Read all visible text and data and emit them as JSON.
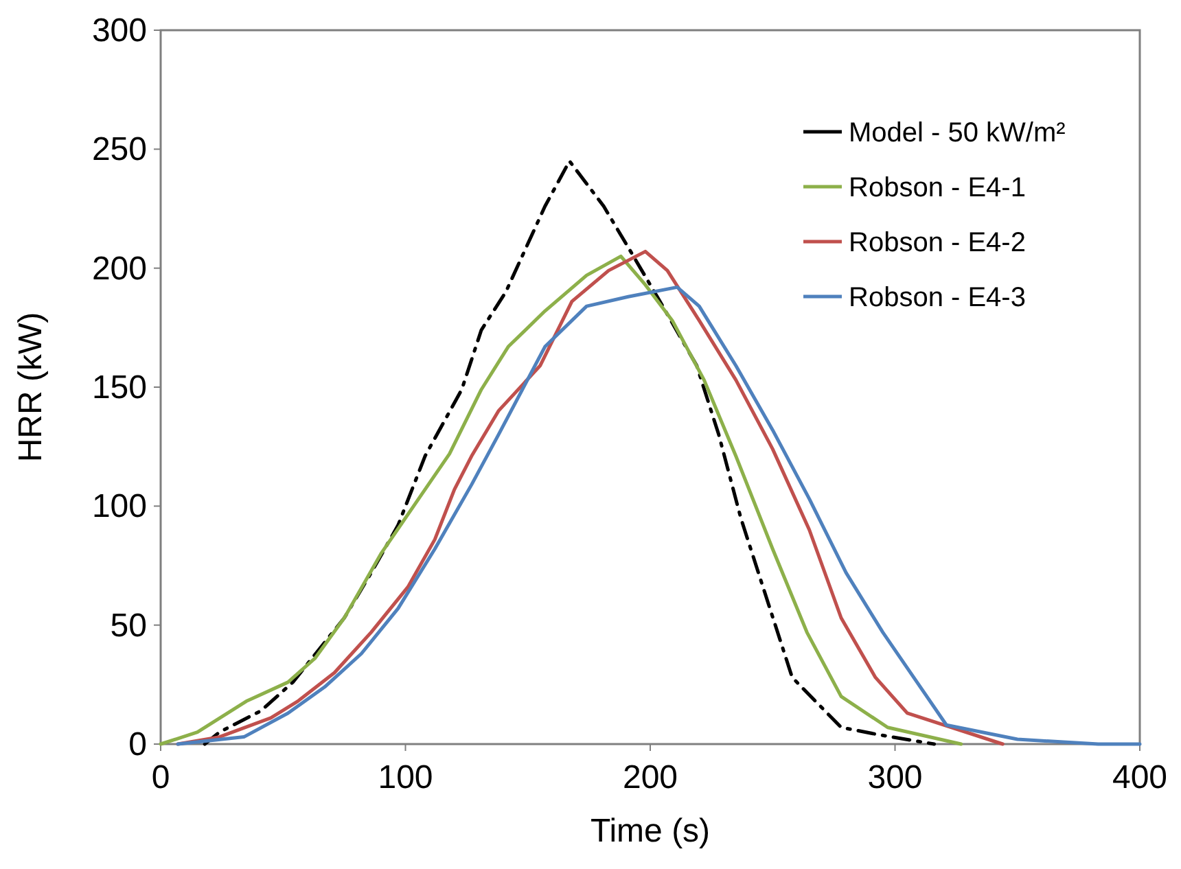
{
  "chart_data": {
    "type": "line",
    "xlabel": "Time (s)",
    "ylabel": "HRR (kW)",
    "xlim": [
      0,
      400
    ],
    "ylim": [
      0,
      300
    ],
    "xticks": [
      0,
      100,
      200,
      300,
      400
    ],
    "yticks": [
      0,
      50,
      100,
      150,
      200,
      250,
      300
    ],
    "grid": false,
    "legend": "top right",
    "marker": "none",
    "series": [
      {
        "name": "Model - 50 kW/m²",
        "color": "#000000",
        "line_style": "dashdot",
        "x": [
          18,
          24,
          41,
          54,
          75,
          86,
          97,
          108,
          123,
          131,
          141,
          157,
          167,
          181,
          192,
          204,
          219,
          228,
          237,
          247,
          258,
          278,
          293,
          316
        ],
        "values": [
          0,
          5,
          14,
          26,
          53,
          72,
          92,
          121,
          149,
          174,
          190,
          226,
          245,
          226,
          207,
          186,
          159,
          130,
          95,
          63,
          28,
          7,
          4,
          0
        ]
      },
      {
        "name": "Robson - E4-1",
        "color": "#8db04a",
        "line_style": "solid",
        "x": [
          0,
          15,
          35,
          52,
          63,
          75,
          90,
          104,
          118,
          131,
          142,
          157,
          174,
          188,
          198,
          209,
          222,
          235,
          250,
          264,
          278,
          297,
          327
        ],
        "values": [
          0,
          5,
          18,
          26,
          36,
          53,
          80,
          101,
          122,
          149,
          167,
          182,
          197,
          205,
          193,
          178,
          153,
          121,
          82,
          47,
          20,
          7,
          0
        ]
      },
      {
        "name": "Robson - E4-2",
        "color": "#c0504d",
        "line_style": "solid",
        "x": [
          7,
          24,
          45,
          56,
          71,
          86,
          101,
          112,
          120,
          127,
          138,
          155,
          168,
          183,
          198,
          207,
          220,
          235,
          250,
          265,
          278,
          292,
          305,
          344
        ],
        "values": [
          0,
          3,
          11,
          18,
          30,
          47,
          66,
          86,
          107,
          121,
          140,
          159,
          186,
          199,
          207,
          199,
          178,
          153,
          124,
          90,
          53,
          28,
          13,
          0
        ]
      },
      {
        "name": "Robson - E4-3",
        "color": "#4f81bd",
        "line_style": "solid",
        "x": [
          7,
          34,
          52,
          67,
          82,
          97,
          112,
          127,
          138,
          157,
          174,
          191,
          211,
          220,
          235,
          250,
          265,
          280,
          295,
          305,
          321,
          350,
          383,
          400
        ],
        "values": [
          0,
          3,
          13,
          24,
          38,
          57,
          82,
          109,
          130,
          167,
          184,
          188,
          192,
          184,
          159,
          132,
          103,
          72,
          47,
          32,
          8,
          2,
          0,
          0
        ]
      }
    ]
  }
}
